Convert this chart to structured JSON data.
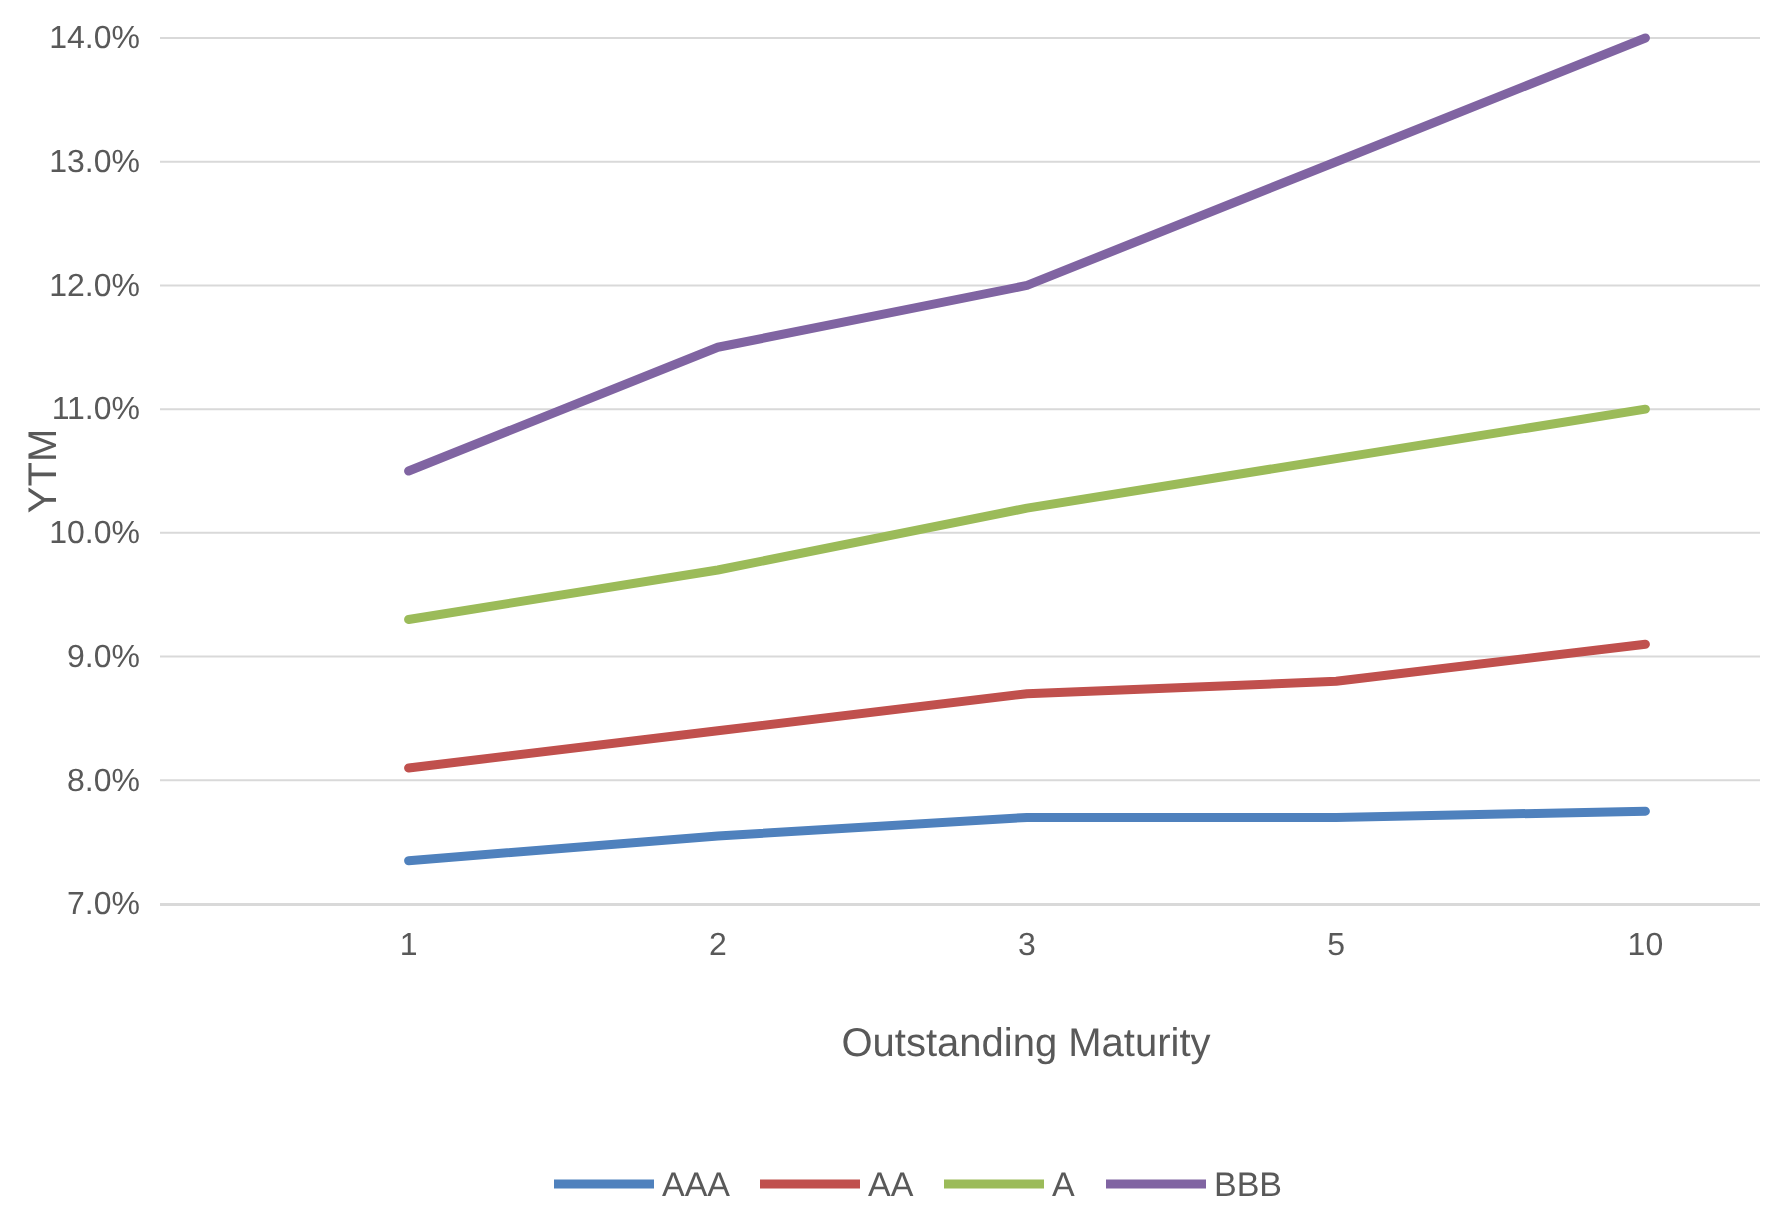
{
  "chart_data": {
    "type": "line",
    "xlabel": "Outstanding Maturity",
    "ylabel": "YTM",
    "categories": [
      "1",
      "2",
      "3",
      "5",
      "10"
    ],
    "series": [
      {
        "name": "AAA",
        "color": "#4f81bd",
        "values": [
          7.35,
          7.55,
          7.7,
          7.7,
          7.75
        ]
      },
      {
        "name": "AA",
        "color": "#c0504d",
        "values": [
          8.1,
          8.4,
          8.7,
          8.8,
          9.1
        ]
      },
      {
        "name": "A",
        "color": "#9bbb59",
        "values": [
          9.3,
          9.7,
          10.2,
          10.6,
          11.0
        ]
      },
      {
        "name": "BBB",
        "color": "#8064a2",
        "values": [
          10.5,
          11.5,
          12.0,
          13.0,
          14.0
        ]
      }
    ],
    "ylim": [
      7,
      14
    ],
    "yticks": [
      {
        "value": 7,
        "label": "7.0%"
      },
      {
        "value": 8,
        "label": "8.0%"
      },
      {
        "value": 9,
        "label": "9.0%"
      },
      {
        "value": 10,
        "label": "10.0%"
      },
      {
        "value": 11,
        "label": "11.0%"
      },
      {
        "value": 12,
        "label": "12.0%"
      },
      {
        "value": 13,
        "label": "13.0%"
      },
      {
        "value": 14,
        "label": "14.0%"
      }
    ],
    "grid": "y",
    "legend": "bottom",
    "marker": "none",
    "line_style": "solid"
  }
}
